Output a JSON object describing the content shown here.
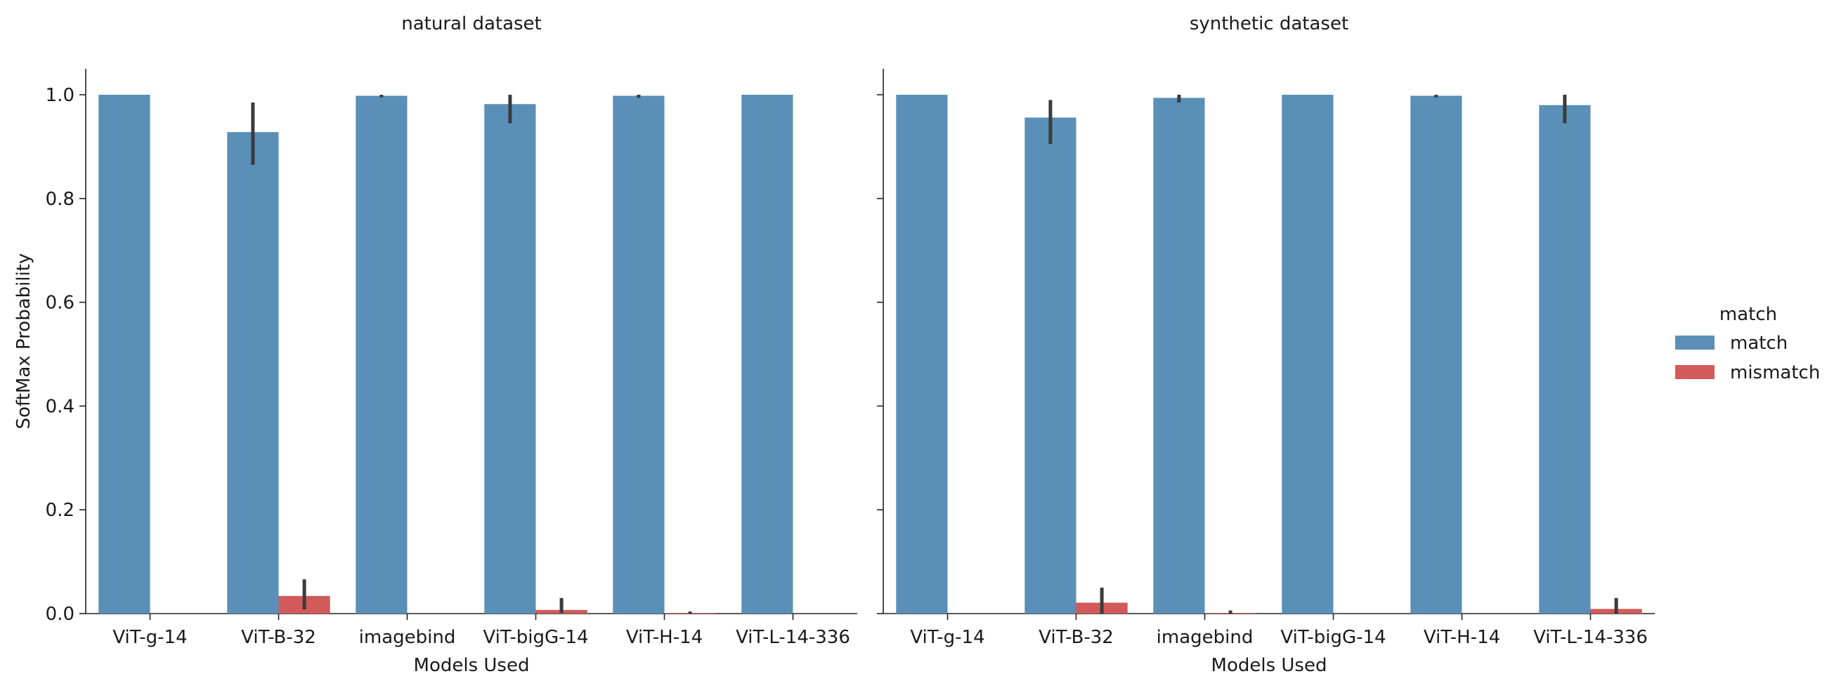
{
  "chart_data": {
    "type": "bar",
    "ylabel": "SoftMax Probability",
    "ylim": [
      0,
      1.05
    ],
    "yticks": [
      "0.0",
      "0.2",
      "0.4",
      "0.6",
      "0.8",
      "1.0"
    ],
    "legend": {
      "title": "match",
      "placement": "right",
      "entries": [
        {
          "name": "match",
          "color": "#5a8fb7"
        },
        {
          "name": "mismatch",
          "color": "#d35a5a"
        }
      ]
    },
    "panels": [
      {
        "title": "natural dataset",
        "xlabel": "Models Used",
        "categories": [
          "ViT-g-14",
          "ViT-B-32",
          "imagebind",
          "ViT-bigG-14",
          "ViT-H-14",
          "ViT-L-14-336"
        ],
        "series": [
          {
            "name": "match",
            "values": [
              1.0,
              0.928,
              0.998,
              0.982,
              0.998,
              1.0
            ],
            "err_low": [
              1.0,
              0.865,
              0.995,
              0.945,
              0.994,
              1.0
            ],
            "err_high": [
              1.0,
              0.985,
              1.0,
              1.0,
              1.0,
              1.0
            ]
          },
          {
            "name": "mismatch",
            "values": [
              0.0,
              0.034,
              0.0,
              0.007,
              0.001,
              0.0
            ],
            "err_low": [
              0.0,
              0.008,
              0.0,
              0.001,
              0.0,
              0.0
            ],
            "err_high": [
              0.0,
              0.066,
              0.0,
              0.03,
              0.004,
              0.0
            ]
          }
        ]
      },
      {
        "title": "synthetic dataset",
        "xlabel": "Models Used",
        "categories": [
          "ViT-g-14",
          "ViT-B-32",
          "imagebind",
          "ViT-bigG-14",
          "ViT-H-14",
          "ViT-L-14-336"
        ],
        "series": [
          {
            "name": "match",
            "values": [
              1.0,
              0.956,
              0.994,
              1.0,
              0.998,
              0.98
            ],
            "err_low": [
              1.0,
              0.905,
              0.985,
              1.0,
              0.995,
              0.945
            ],
            "err_high": [
              1.0,
              0.99,
              1.0,
              1.0,
              1.0,
              1.0
            ]
          },
          {
            "name": "mismatch",
            "values": [
              0.0,
              0.021,
              0.001,
              0.0,
              0.0,
              0.009
            ],
            "err_low": [
              0.0,
              0.0,
              0.0,
              0.0,
              0.0,
              0.0
            ],
            "err_high": [
              0.0,
              0.05,
              0.006,
              0.0,
              0.0,
              0.03
            ]
          }
        ]
      }
    ]
  }
}
